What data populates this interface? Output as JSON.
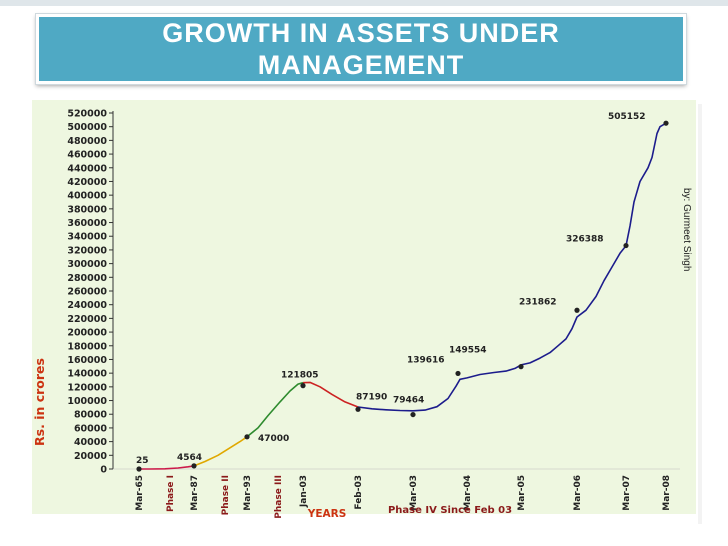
{
  "slide": {
    "title": "GROWTH IN ASSETS UNDER MANAGEMENT",
    "credit": "by: Gurmeet Singh"
  },
  "chart_data": {
    "type": "line",
    "ylabel": "Rs. in crores",
    "xlabel": "YEARS",
    "ylim": [
      0,
      520000
    ],
    "y_ticks": [
      0,
      20000,
      40000,
      60000,
      80000,
      100000,
      120000,
      140000,
      160000,
      180000,
      200000,
      220000,
      240000,
      260000,
      280000,
      300000,
      320000,
      340000,
      360000,
      380000,
      400000,
      420000,
      440000,
      460000,
      480000,
      500000,
      520000
    ],
    "x_ticks": [
      "Mar-65",
      "Mar-87",
      "Mar-93",
      "Jan-03",
      "Feb-03",
      "Mar-03",
      "Mar-04",
      "Mar-05",
      "Mar-06",
      "Mar-07",
      "Mar-08"
    ],
    "phases": [
      "Phase I",
      "Phase II",
      "Phase III",
      "Phase IV Since Feb 03"
    ],
    "colors": {
      "phase1": "#cc1a4a",
      "phase2": "#e0a800",
      "phase3": "#2e8b2e",
      "phase3b": "#cc2222",
      "phase4": "#1c1c8c",
      "axis_text": "#222222",
      "ylabel": "#cc3311",
      "xlabel": "#cc3311",
      "phase_label": "#8b1a1a"
    },
    "labeled_points": [
      {
        "x": "Mar-65",
        "value": 25
      },
      {
        "x": "Mar-87",
        "value": 4564
      },
      {
        "x": "Mar-93",
        "value": 47000
      },
      {
        "x": "Jan-03",
        "value": 121805
      },
      {
        "x": "Feb-03",
        "value": 87190
      },
      {
        "x": "Mar-03",
        "value": 79464
      },
      {
        "x": "Mar-04",
        "value": 139616
      },
      {
        "x": "Mar-05",
        "value": 149554
      },
      {
        "x": "Mar-06",
        "value": 231862
      },
      {
        "x": "Mar-07",
        "value": 326388
      },
      {
        "x": "Mar-08",
        "value": 505152
      }
    ]
  }
}
